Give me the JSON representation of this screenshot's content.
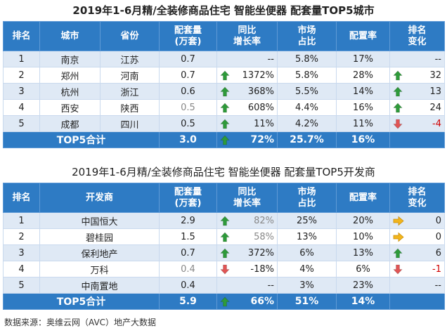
{
  "table1": {
    "title": "2019年1-6月精/全装修商品住宅 智能坐便器 配套量TOP5城市",
    "headers": [
      "排名",
      "城市",
      "省份",
      "配套量\n(万套)",
      "同比\n增长率",
      "市场\n占比",
      "配置率",
      "排名\n变化"
    ],
    "rows": [
      {
        "rank": "1",
        "city": "南京",
        "province": "江苏",
        "volume": "0.7",
        "volume_grey": false,
        "yoy_arrow": "",
        "yoy": "--",
        "share": "5.8%",
        "rate": "17%",
        "change_arrow": "",
        "change": "--",
        "change_red": false
      },
      {
        "rank": "2",
        "city": "郑州",
        "province": "河南",
        "volume": "0.7",
        "volume_grey": false,
        "yoy_arrow": "up",
        "yoy": "1372%",
        "share": "5.8%",
        "rate": "28%",
        "change_arrow": "up",
        "change": "32",
        "change_red": false
      },
      {
        "rank": "3",
        "city": "杭州",
        "province": "浙江",
        "volume": "0.6",
        "volume_grey": false,
        "yoy_arrow": "up",
        "yoy": "368%",
        "share": "5.5%",
        "rate": "14%",
        "change_arrow": "up",
        "change": "13",
        "change_red": false
      },
      {
        "rank": "4",
        "city": "西安",
        "province": "陕西",
        "volume": "0.5",
        "volume_grey": true,
        "yoy_arrow": "up",
        "yoy": "608%",
        "share": "4.4%",
        "rate": "16%",
        "change_arrow": "up",
        "change": "24",
        "change_red": false
      },
      {
        "rank": "5",
        "city": "成都",
        "province": "四川",
        "volume": "0.5",
        "volume_grey": false,
        "yoy_arrow": "up",
        "yoy": "11%",
        "share": "4.2%",
        "rate": "11%",
        "change_arrow": "down",
        "change": "-4",
        "change_red": true
      }
    ],
    "total": {
      "label": "TOP5合计",
      "volume": "3.0",
      "yoy_arrow": "up",
      "yoy": "72%",
      "share": "25.7%",
      "rate": "16%"
    }
  },
  "table2": {
    "title": "2019年1-6月精/全装修商品住宅 智能坐便器 配套量TOP5开发商",
    "headers": [
      "排名",
      "开发商",
      "配套量\n(万套)",
      "同比\n增长率",
      "市场\n占比",
      "配置率",
      "排名\n变化"
    ],
    "rows": [
      {
        "rank": "1",
        "developer": "中国恒大",
        "volume": "2.9",
        "volume_grey": false,
        "yoy_arrow": "up",
        "yoy": "82%",
        "yoy_grey": true,
        "share": "25%",
        "rate": "20%",
        "change_arrow": "right",
        "change": "0",
        "change_red": false
      },
      {
        "rank": "2",
        "developer": "碧桂园",
        "volume": "1.5",
        "volume_grey": false,
        "yoy_arrow": "up",
        "yoy": "58%",
        "yoy_grey": true,
        "share": "13%",
        "rate": "10%",
        "change_arrow": "right",
        "change": "0",
        "change_red": false
      },
      {
        "rank": "3",
        "developer": "保利地产",
        "volume": "0.7",
        "volume_grey": false,
        "yoy_arrow": "up",
        "yoy": "372%",
        "yoy_grey": false,
        "share": "6%",
        "rate": "13%",
        "change_arrow": "up",
        "change": "6",
        "change_red": false
      },
      {
        "rank": "4",
        "developer": "万科",
        "volume": "0.4",
        "volume_grey": true,
        "yoy_arrow": "down",
        "yoy": "-18%",
        "yoy_grey": false,
        "share": "4%",
        "rate": "6%",
        "change_arrow": "down",
        "change": "-1",
        "change_red": true
      },
      {
        "rank": "5",
        "developer": "中南置地",
        "volume": "0.4",
        "volume_grey": false,
        "yoy_arrow": "",
        "yoy": "--",
        "yoy_grey": false,
        "share": "3%",
        "rate": "23%",
        "change_arrow": "",
        "change": "--",
        "change_red": false
      }
    ],
    "total": {
      "label": "TOP5合计",
      "volume": "5.9",
      "yoy_arrow": "up",
      "yoy": "66%",
      "share": "51%",
      "rate": "14%"
    }
  },
  "footer": "数据来源：奥维云网（AVC）地产大数据",
  "colors": {
    "header_bg": "#2e7bc4",
    "row_alt_bg": "#dfe9f5",
    "arrow_up": "#2e9a3a",
    "arrow_down": "#e05555",
    "arrow_right": "#f2b51c",
    "negative_text": "#d00000"
  },
  "icons": {
    "up": "arrow-up-icon",
    "down": "arrow-down-icon",
    "right": "arrow-right-icon"
  }
}
